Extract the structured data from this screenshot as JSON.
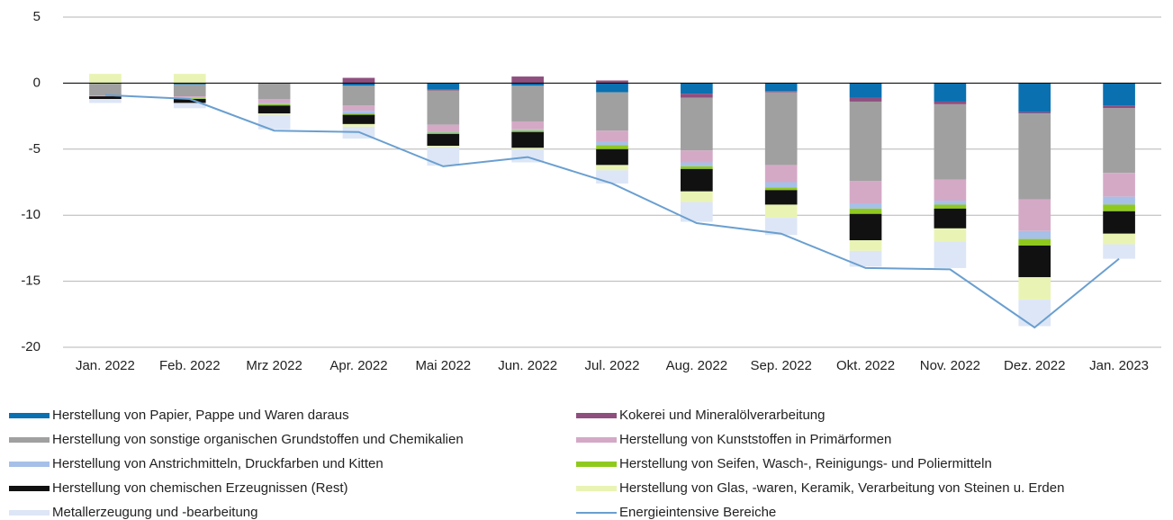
{
  "chart_data": {
    "type": "bar",
    "categories": [
      "Jan. 2022",
      "Feb. 2022",
      "Mrz 2022",
      "Apr. 2022",
      "Mai 2022",
      "Jun. 2022",
      "Jul. 2022",
      "Aug. 2022",
      "Sep. 2022",
      "Okt. 2022",
      "Nov. 2022",
      "Dez. 2022",
      "Jan. 2023"
    ],
    "stacked": true,
    "ylim": [
      -20,
      5
    ],
    "yticks": [
      -20,
      -15,
      -10,
      -5,
      0,
      5
    ],
    "grid": true,
    "series": [
      {
        "name": "Herstellung von Papier, Pappe und Waren daraus",
        "color": "#0a70b0",
        "values": [
          -0.05,
          -0.1,
          0,
          -0.2,
          -0.5,
          -0.2,
          -0.7,
          -0.8,
          -0.6,
          -1.1,
          -1.4,
          -2.2,
          -1.7
        ]
      },
      {
        "name": "Kokerei und Mineralölverarbeitung",
        "color": "#8e4f7f",
        "values": [
          0,
          0,
          0,
          0.4,
          -0.05,
          0.5,
          0.2,
          -0.3,
          -0.1,
          -0.3,
          -0.2,
          -0.1,
          -0.2
        ]
      },
      {
        "name": "Herstellung von sonstige organischen Grundstoffen und Chemikalien",
        "color": "#a0a0a0",
        "values": [
          -0.9,
          -0.9,
          -1.2,
          -1.5,
          -2.6,
          -2.7,
          -2.9,
          -4.0,
          -5.5,
          -6.0,
          -5.7,
          -6.5,
          -4.9
        ]
      },
      {
        "name": "Herstellung von Kunststoffen in Primärformen",
        "color": "#d4a9c6",
        "values": [
          -0.05,
          -0.1,
          -0.3,
          -0.4,
          -0.5,
          -0.6,
          -0.8,
          -0.9,
          -1.3,
          -1.7,
          -1.6,
          -2.4,
          -1.8
        ]
      },
      {
        "name": "Herstellung von Anstrichmitteln, Druckfarben und Kitten",
        "color": "#a6c0e8",
        "values": [
          0,
          -0.05,
          -0.1,
          -0.2,
          -0.1,
          -0.1,
          -0.3,
          -0.3,
          -0.4,
          -0.4,
          -0.3,
          -0.6,
          -0.6
        ]
      },
      {
        "name": "Herstellung von Seifen, Wasch-, Reinigungs- und Poliermitteln",
        "color": "#8fc91e",
        "values": [
          0,
          -0.05,
          -0.1,
          -0.1,
          -0.1,
          -0.1,
          -0.3,
          -0.2,
          -0.2,
          -0.4,
          -0.3,
          -0.5,
          -0.5
        ]
      },
      {
        "name": "Herstellung von chemischen Erzeugnissen (Rest)",
        "color": "#111111",
        "values": [
          -0.2,
          -0.3,
          -0.6,
          -0.7,
          -0.9,
          -1.2,
          -1.2,
          -1.7,
          -1.1,
          -2.0,
          -1.5,
          -2.4,
          -1.7
        ]
      },
      {
        "name": "Herstellung von Glas, -waren, Keramik, Verarbeitung von Steinen u. Erden",
        "color": "#e9f4b4",
        "values": [
          0.7,
          0.7,
          -0.1,
          -0.2,
          -0.1,
          -0.1,
          -0.4,
          -0.8,
          -1.0,
          -0.8,
          -1.0,
          -1.7,
          -0.8
        ]
      },
      {
        "name": "Metallerzeugung und -bearbeitung",
        "color": "#dde6f6",
        "values": [
          -0.3,
          -0.4,
          -1.1,
          -0.9,
          -1.4,
          -1.0,
          -1.0,
          -1.5,
          -1.3,
          -1.2,
          -2.0,
          -2.0,
          -1.1
        ]
      },
      {
        "name": "Energieintensive Bereiche",
        "color": "#6a9fd0",
        "type": "line",
        "values": [
          -0.9,
          -1.2,
          -3.6,
          -3.7,
          -6.3,
          -5.6,
          -7.6,
          -10.6,
          -11.4,
          -14.0,
          -14.1,
          -18.5,
          -13.3
        ]
      }
    ]
  }
}
